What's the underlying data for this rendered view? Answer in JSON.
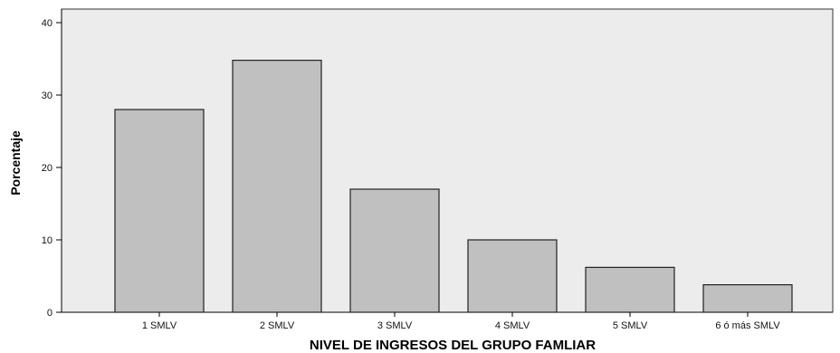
{
  "chart_data": {
    "type": "bar",
    "categories": [
      "1 SMLV",
      "2 SMLV",
      "3 SMLV",
      "4 SMLV",
      "5 SMLV",
      "6 ó más SMLV"
    ],
    "values": [
      28,
      34.8,
      17,
      10,
      6.2,
      3.8
    ],
    "xlabel": "NIVEL DE INGRESOS DEL GRUPO FAMLIAR",
    "ylabel": "Porcentaje",
    "ylim": [
      0,
      40
    ],
    "yticks": [
      0,
      10,
      20,
      30,
      40
    ],
    "grid": false,
    "bar_color": "#c0c0c0",
    "plot_background": "#ececec"
  }
}
